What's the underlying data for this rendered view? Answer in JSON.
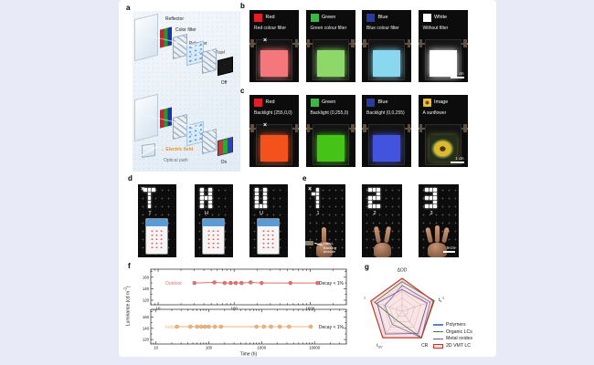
{
  "background": {
    "page": "#e9eaf8",
    "canvas": "#ffffff"
  },
  "panels": {
    "a": {
      "label": "a",
      "annotations": {
        "reflector": "Reflector",
        "color_filter": "Color filter",
        "polarizer": "Polarizer",
        "pixel": "Pixel",
        "off": "Off",
        "on": "On",
        "field_arrow": "→",
        "electric_field": "Electric field",
        "optical_path": "Optical path"
      }
    },
    "b": {
      "label": "b",
      "photos": [
        {
          "name": "Red",
          "subtitle": "Red colour filter",
          "swatch": "#e41e26",
          "screen": "#f4777b",
          "marker": "×"
        },
        {
          "name": "Green",
          "subtitle": "Green colour filter",
          "swatch": "#3db54a",
          "screen": "#8ed86a"
        },
        {
          "name": "Blue",
          "subtitle": "Blue colour filter",
          "swatch": "#2a3b9f",
          "screen": "#8ad8f0"
        },
        {
          "name": "White",
          "subtitle": "Without filter",
          "swatch": "#ffffff",
          "screen": "#ffffff",
          "scalebar": "1 cm"
        }
      ]
    },
    "c": {
      "label": "c",
      "photos": [
        {
          "name": "Red",
          "subtitle": "Backlight (255,0,0)",
          "swatch": "#e41e26",
          "screen": "#f4521d",
          "marker": "×"
        },
        {
          "name": "Green",
          "subtitle": "Backlight (0,255,0)",
          "swatch": "#3db54a",
          "screen": "#45c417"
        },
        {
          "name": "Blue",
          "subtitle": "Backlight (0,0,255)",
          "swatch": "#2a3b9f",
          "screen": "#4254dd"
        },
        {
          "name": "Image",
          "subtitle": "A sunflower",
          "swatch": "sunflower",
          "scalebar": "1 cm"
        }
      ]
    },
    "d": {
      "label": "d",
      "photos": [
        {
          "char": "T",
          "pattern": [
            "111",
            "010",
            "010",
            "010",
            "010"
          ],
          "marker": "×"
        },
        {
          "char": "H",
          "pattern": [
            "101",
            "101",
            "111",
            "101",
            "101"
          ]
        },
        {
          "char": "U",
          "pattern": [
            "101",
            "101",
            "101",
            "101",
            "111"
          ]
        }
      ]
    },
    "e": {
      "label": "e",
      "annotation": "Hand-tracking module",
      "photos": [
        {
          "char": "1",
          "pattern": [
            "010",
            "110",
            "010",
            "010",
            "010"
          ],
          "marker": "×",
          "fingers": 1
        },
        {
          "char": "2",
          "pattern": [
            "111",
            "001",
            "111",
            "100",
            "111"
          ],
          "fingers": 2
        },
        {
          "char": "3",
          "pattern": [
            "111",
            "001",
            "111",
            "001",
            "111"
          ],
          "fingers": 3,
          "scalebar": "5 cm"
        }
      ]
    },
    "f": {
      "label": "f"
    },
    "g": {
      "label": "g"
    }
  },
  "chart_data": [
    {
      "type": "line",
      "subplot": "outdoor",
      "xscale": "log",
      "xlim": [
        8,
        3000
      ],
      "xticks": [
        10,
        100,
        1000
      ],
      "ylim": [
        112,
        174
      ],
      "yticks": [
        120,
        140,
        160
      ],
      "ylabel": {
        "pre": "Luminance (cd m",
        "sup": "-2",
        "post": ")"
      },
      "annotation": "Decay < 1%",
      "grid": false,
      "series": [
        {
          "name": "Outdoor",
          "color": "#e4706f",
          "x": [
            30,
            55,
            75,
            90,
            105,
            125,
            165,
            230,
            550,
            1250
          ],
          "y": [
            150,
            151,
            150,
            150,
            150,
            150,
            151,
            150,
            150,
            150
          ]
        }
      ]
    },
    {
      "type": "line",
      "subplot": "indoor",
      "xscale": "log",
      "xlim": [
        8,
        40000
      ],
      "xticks": [
        10,
        100,
        1000,
        10000
      ],
      "ylim": [
        112,
        174
      ],
      "yticks": [
        120,
        140,
        160
      ],
      "xlabel": "Time (h)",
      "annotation": "Decay < 1%",
      "grid": false,
      "series": [
        {
          "name": "Indoor",
          "color": "#f2b273",
          "x": [
            25,
            45,
            60,
            72,
            85,
            100,
            130,
            170,
            800,
            1100,
            1500,
            2200,
            3300,
            8500
          ],
          "y": [
            143,
            143,
            143,
            143,
            143,
            143,
            143,
            143,
            143,
            143,
            143,
            143,
            143,
            143
          ]
        }
      ]
    },
    {
      "type": "radar",
      "levels": 5,
      "legend_position": "right",
      "axes": [
        {
          "base": "ΔOD"
        },
        {
          "base": "t",
          "sub": "s",
          "sup": "-1"
        },
        {
          "base": "CR"
        },
        {
          "base": "t",
          "sub": "UV"
        },
        {
          "base": "E",
          "sup": "-1"
        }
      ],
      "series": [
        {
          "name": "Polymers",
          "color": "#5b83cc",
          "values": [
            0.78,
            0.9,
            1.0,
            0.5,
            0.55
          ]
        },
        {
          "name": "Organic LCs",
          "color": "#41804b",
          "values": [
            0.9,
            1.03,
            1.0,
            0.32,
            0.88
          ]
        },
        {
          "name": "Metal oxides",
          "color": "#6f57a8",
          "values": [
            0.66,
            0.8,
            0.84,
            0.86,
            0.8
          ]
        },
        {
          "name": "2D VMT LC",
          "color": "#c0392b",
          "values": [
            1,
            1,
            1,
            1,
            1
          ],
          "fill": "rgba(230,90,90,0.16)"
        }
      ]
    }
  ]
}
